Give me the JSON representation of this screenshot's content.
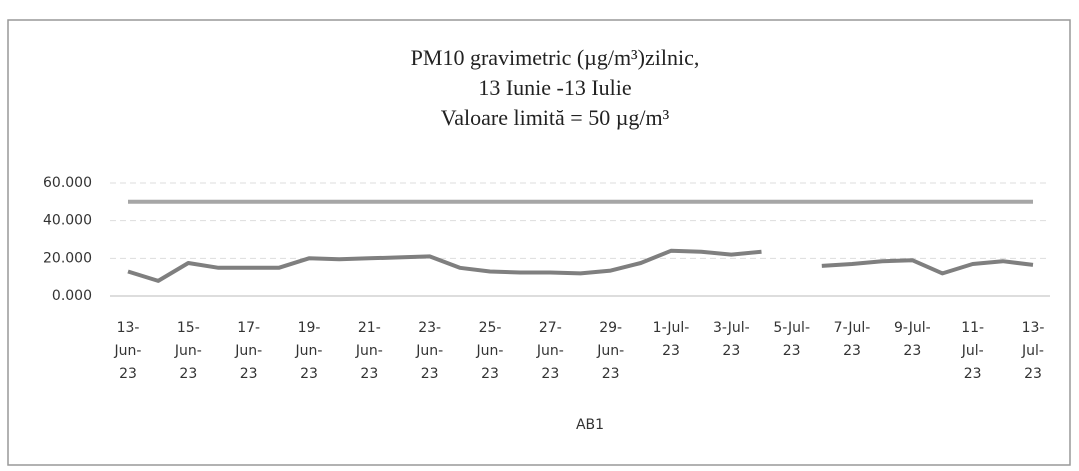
{
  "chart_data": {
    "type": "line",
    "title": [
      "PM10 gravimetric (µg/m³)zilnic,",
      "13 Iunie -13  Iulie",
      "Valoare limită = 50 µg/m³"
    ],
    "categories": [
      "13-Jun-23",
      null,
      "15-Jun-23",
      null,
      "17-Jun-23",
      null,
      "19-Jun-23",
      null,
      "21-Jun-23",
      null,
      "23-Jun-23",
      null,
      "25-Jun-23",
      null,
      "27-Jun-23",
      null,
      "29-Jun-23",
      null,
      "1-Jul-23",
      null,
      "3-Jul-23",
      null,
      "5-Jul-23",
      null,
      "7-Jul-23",
      null,
      "9-Jul-23",
      null,
      "11-Jul-23",
      null,
      "13-Jul-23"
    ],
    "series": [
      {
        "color": "#a6a6a6",
        "values": [
          50,
          50,
          50,
          50,
          50,
          50,
          50,
          50,
          50,
          50,
          50,
          50,
          50,
          50,
          50,
          50,
          50,
          50,
          50,
          50,
          50,
          50,
          50,
          50,
          50,
          50,
          50,
          50,
          50,
          50,
          50
        ]
      },
      {
        "name": "AB1",
        "color": "#7f7f7f",
        "values": [
          13,
          8,
          17.5,
          15,
          15,
          15,
          20,
          19.5,
          20,
          20.5,
          21,
          15,
          13,
          12.5,
          12.5,
          12,
          13.5,
          17.5,
          24,
          23.5,
          22,
          23.5,
          null,
          16,
          17,
          18.5,
          19,
          12,
          17,
          18.5,
          16.5
        ]
      }
    ],
    "ylim": [
      0,
      60
    ],
    "yticks": [
      {
        "value": 0,
        "label": "0.000"
      },
      {
        "value": 20,
        "label": "20.000"
      },
      {
        "value": 40,
        "label": "40.000"
      },
      {
        "value": 60,
        "label": "60.000"
      }
    ],
    "grid": true
  }
}
